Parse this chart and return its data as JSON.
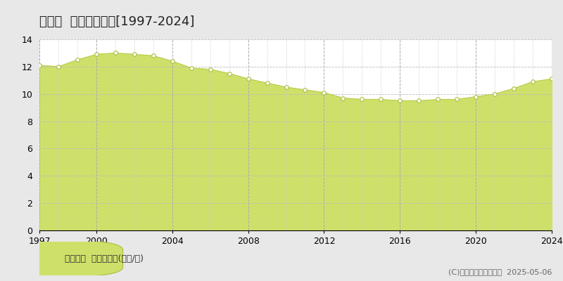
{
  "title": "紫波町  基準地価推移[1997-2024]",
  "years": [
    1997,
    1998,
    1999,
    2000,
    2001,
    2002,
    2003,
    2004,
    2005,
    2006,
    2007,
    2008,
    2009,
    2010,
    2011,
    2012,
    2013,
    2014,
    2015,
    2016,
    2017,
    2018,
    2019,
    2020,
    2021,
    2022,
    2023,
    2024
  ],
  "values": [
    12.1,
    12.0,
    12.5,
    12.9,
    13.0,
    12.9,
    12.8,
    12.4,
    11.9,
    11.8,
    11.5,
    11.1,
    10.8,
    10.5,
    10.3,
    10.1,
    9.7,
    9.6,
    9.6,
    9.5,
    9.5,
    9.6,
    9.6,
    9.8,
    10.0,
    10.4,
    10.9,
    11.1
  ],
  "fill_color": "#cfe06a",
  "line_color": "#b8cc48",
  "marker_facecolor": "#ffffff",
  "marker_edgecolor": "#a8bc38",
  "fig_bg_color": "#e8e8e8",
  "plot_bg_color": "#ffffff",
  "grid_color_h": "#bbbbbb",
  "grid_color_v_major": "#aaaaaa",
  "grid_color_v_minor": "#cccccc",
  "ylim": [
    0,
    14
  ],
  "yticks": [
    0,
    2,
    4,
    6,
    8,
    10,
    12,
    14
  ],
  "xticks_major": [
    1997,
    2000,
    2004,
    2008,
    2012,
    2016,
    2020,
    2024
  ],
  "legend_label": "基準地価  平均坪単価(万円/坪)",
  "copyright": "(C)土地価格ドットコム  2025-05-06",
  "title_fontsize": 13,
  "axis_fontsize": 9,
  "legend_fontsize": 9,
  "copyright_fontsize": 8
}
